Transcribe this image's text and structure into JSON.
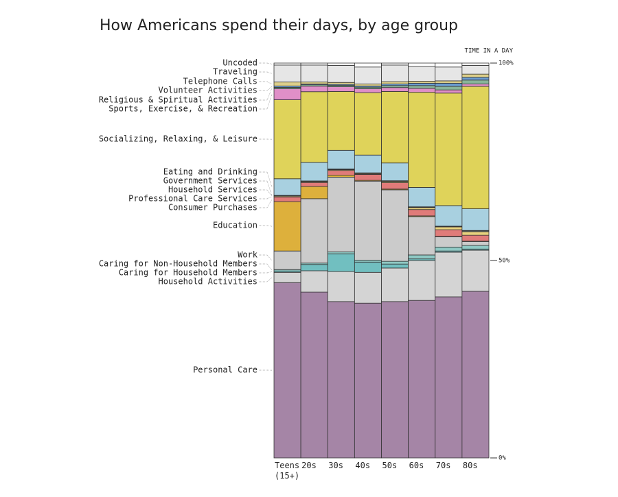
{
  "chart_data": {
    "type": "stacked_bar_100",
    "title": "How Americans spend their days, by age group",
    "y_axis_label": "TIME IN A DAY",
    "categories": [
      "Teens (15+)",
      "20s",
      "30s",
      "40s",
      "50s",
      "60s",
      "70s",
      "80s"
    ],
    "ylim": [
      0,
      100
    ],
    "yticks": [
      {
        "value": 0,
        "label": "0%"
      },
      {
        "value": 50,
        "label": "50%"
      },
      {
        "value": 100,
        "label": "100%"
      }
    ],
    "series": [
      {
        "name": "Personal Care",
        "color": "#a585a6",
        "values": [
          44.4,
          42.0,
          39.6,
          39.2,
          39.6,
          39.9,
          40.8,
          42.2
        ]
      },
      {
        "name": "Household Activities",
        "color": "#d4d4d4",
        "values": [
          2.6,
          5.4,
          7.6,
          7.8,
          8.5,
          10.1,
          11.3,
          10.4
        ]
      },
      {
        "name": "Caring for Household Members",
        "color": "#71bfc0",
        "values": [
          0.35,
          1.6,
          4.5,
          2.6,
          1.0,
          0.4,
          0.3,
          0.3
        ]
      },
      {
        "name": "Caring for Non-Household Members",
        "color": "#8fc9c4",
        "values": [
          0.35,
          0.35,
          0.5,
          0.5,
          0.7,
          1.0,
          1.0,
          0.9
        ]
      },
      {
        "name": "Work",
        "color": "#cbcbcb",
        "values": [
          4.7,
          16.3,
          18.9,
          20.0,
          18.1,
          9.7,
          2.6,
          1.0
        ]
      },
      {
        "name": "Education",
        "color": "#ddb03c",
        "values": [
          12.5,
          3.1,
          0.5,
          0.2,
          0.2,
          0.2,
          0.1,
          0.1
        ]
      },
      {
        "name": "Consumer Purchases",
        "color": "#e07b79",
        "values": [
          1.2,
          1.0,
          1.2,
          1.5,
          1.6,
          1.6,
          1.7,
          1.5
        ]
      },
      {
        "name": "Professional Care Services",
        "color": "#e8d27e",
        "values": [
          0.2,
          0.2,
          0.2,
          0.2,
          0.3,
          0.5,
          0.7,
          0.9
        ]
      },
      {
        "name": "Household Services",
        "color": "#9fb7a8",
        "values": [
          0.1,
          0.1,
          0.1,
          0.1,
          0.1,
          0.1,
          0.1,
          0.2
        ]
      },
      {
        "name": "Government Services",
        "color": "#7d9fcf",
        "values": [
          0.1,
          0.1,
          0.1,
          0.1,
          0.1,
          0.1,
          0.1,
          0.1
        ]
      },
      {
        "name": "Eating and Drinking",
        "color": "#a8d0e0",
        "values": [
          4.2,
          4.7,
          4.7,
          4.5,
          4.5,
          4.9,
          5.2,
          5.5
        ]
      },
      {
        "name": "Socializing, Relaxing, & Leisure",
        "color": "#dfd35a",
        "values": [
          20.0,
          17.9,
          14.9,
          15.8,
          18.1,
          24.1,
          28.5,
          31.0
        ]
      },
      {
        "name": "Sports, Exercise, & Recreation",
        "color": "#e08fc8",
        "values": [
          2.8,
          1.4,
          1.2,
          1.0,
          1.0,
          1.0,
          0.8,
          0.6
        ]
      },
      {
        "name": "Religious & Spiritual Activities",
        "color": "#88b59a",
        "values": [
          0.35,
          0.35,
          0.35,
          0.4,
          0.5,
          0.7,
          0.9,
          1.0
        ]
      },
      {
        "name": "Volunteer Activities",
        "color": "#6b9ed2",
        "values": [
          0.35,
          0.2,
          0.25,
          0.3,
          0.4,
          0.6,
          0.8,
          0.7
        ]
      },
      {
        "name": "Telephone Calls",
        "color": "#ddcf8a",
        "values": [
          1.0,
          0.5,
          0.5,
          0.5,
          0.6,
          0.5,
          0.6,
          0.8
        ]
      },
      {
        "name": "Traveling",
        "color": "#e6e6e6",
        "values": [
          4.3,
          4.3,
          4.3,
          4.3,
          4.2,
          3.8,
          3.5,
          2.2
        ]
      },
      {
        "name": "Uncoded",
        "color": "#ffffff",
        "values": [
          0.5,
          0.5,
          0.6,
          1.0,
          0.5,
          0.8,
          1.0,
          0.6
        ]
      }
    ]
  }
}
